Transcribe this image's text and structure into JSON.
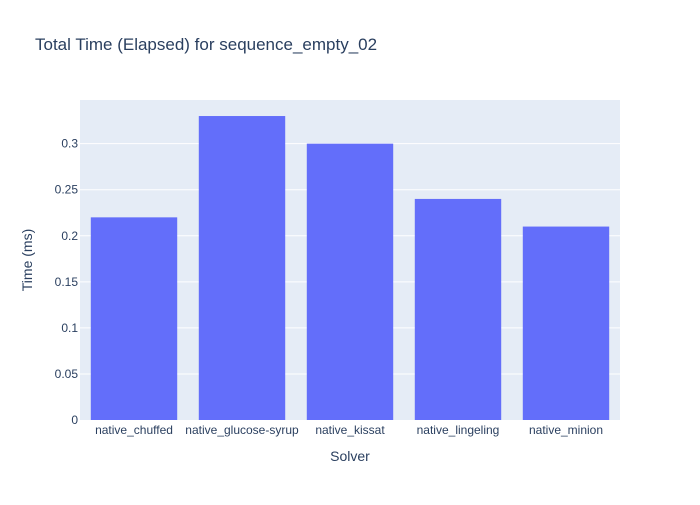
{
  "chart_data": {
    "type": "bar",
    "title": "Total Time (Elapsed) for sequence_empty_02",
    "xlabel": "Solver",
    "ylabel": "Time (ms)",
    "categories": [
      "native_chuffed",
      "native_glucose-syrup",
      "native_kissat",
      "native_lingeling",
      "native_minion"
    ],
    "values": [
      0.22,
      0.33,
      0.3,
      0.24,
      0.21
    ],
    "ylim": [
      0,
      0.3474
    ],
    "yticks": [
      0,
      0.05,
      0.1,
      0.15,
      0.2,
      0.25,
      0.3
    ],
    "ytick_labels": [
      "0",
      "0.05",
      "0.1",
      "0.15",
      "0.2",
      "0.25",
      "0.3"
    ],
    "grid": true,
    "legend": "none",
    "colors": {
      "bar": "#636efa",
      "plot_bg": "#e5ecf6",
      "grid": "#ffffff",
      "text": "#2a3f5f",
      "title": "#2a3f5f"
    }
  }
}
